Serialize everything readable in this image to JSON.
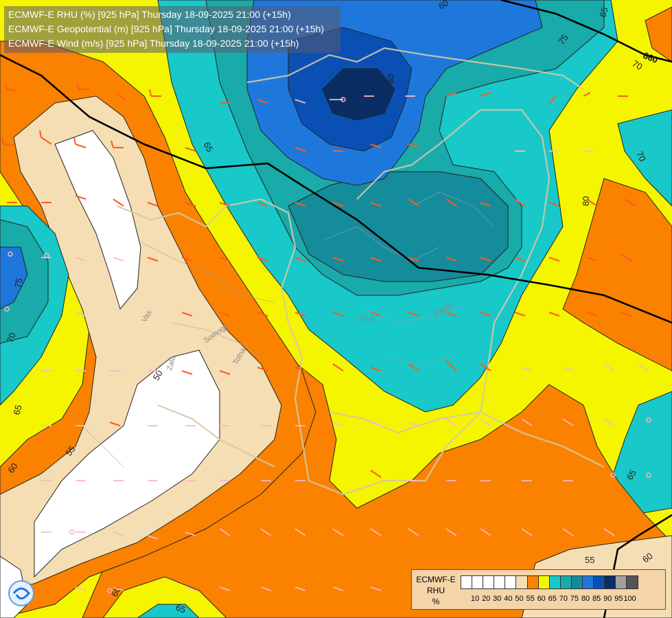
{
  "titles": [
    "ECMWF-E RHU (%) [925 hPa] Thursday 18-09-2025 21:00 (+15h)",
    "ECMWF-E Geopotential (m) [925 hPa] Thursday 18-09-2025 21:00 (+15h)",
    "ECMWF-E Wind (m/s) [925 hPa] Thursday 18-09-2025 21:00 (+15h)"
  ],
  "legend": {
    "label": [
      "ECMWF-E",
      "RHU",
      "%"
    ],
    "swatch_colors": [
      "#ffffff",
      "#ffffff",
      "#ffffff",
      "#ffffff",
      "#ffffff",
      "#f5deb3",
      "#fa8200",
      "#f5f500",
      "#19c8c8",
      "#19aaaa",
      "#148c9b",
      "#1e78dc",
      "#0a50b4",
      "#0a2d64",
      "#a0a0a0",
      "#555555"
    ],
    "ticks": [
      "10",
      "20",
      "30",
      "40",
      "50",
      "55",
      "60",
      "65",
      "70",
      "75",
      "80",
      "85",
      "90",
      "95",
      "100"
    ]
  },
  "contour_labels": {
    "rhu": [
      "60",
      "80",
      "65",
      "75",
      "70",
      "65",
      "70",
      "80",
      "75",
      "70",
      "65",
      "55",
      "60",
      "50",
      "65",
      "60",
      "60",
      "55",
      "50",
      "60",
      "65"
    ],
    "geopotential": [
      "860"
    ]
  },
  "place_names": [
    "Vas",
    "Zala",
    "Somogy",
    "Tolna",
    "Pest",
    "Békés"
  ],
  "colors": {
    "white": "#ffffff",
    "beige": "#f5deb3",
    "orange": "#fa8200",
    "yellow": "#f5f500",
    "cyan": "#19c8c8",
    "teal": "#19aaaa",
    "dark_teal": "#148c9b",
    "blue": "#1e78dc",
    "royal_blue": "#0a50b4",
    "navy": "#0a2d64",
    "barb_orange": "#ff5a1e",
    "barb_pink": "#ffb4c8",
    "border": "#d4c9a8",
    "geopotential_line": "#000000"
  }
}
